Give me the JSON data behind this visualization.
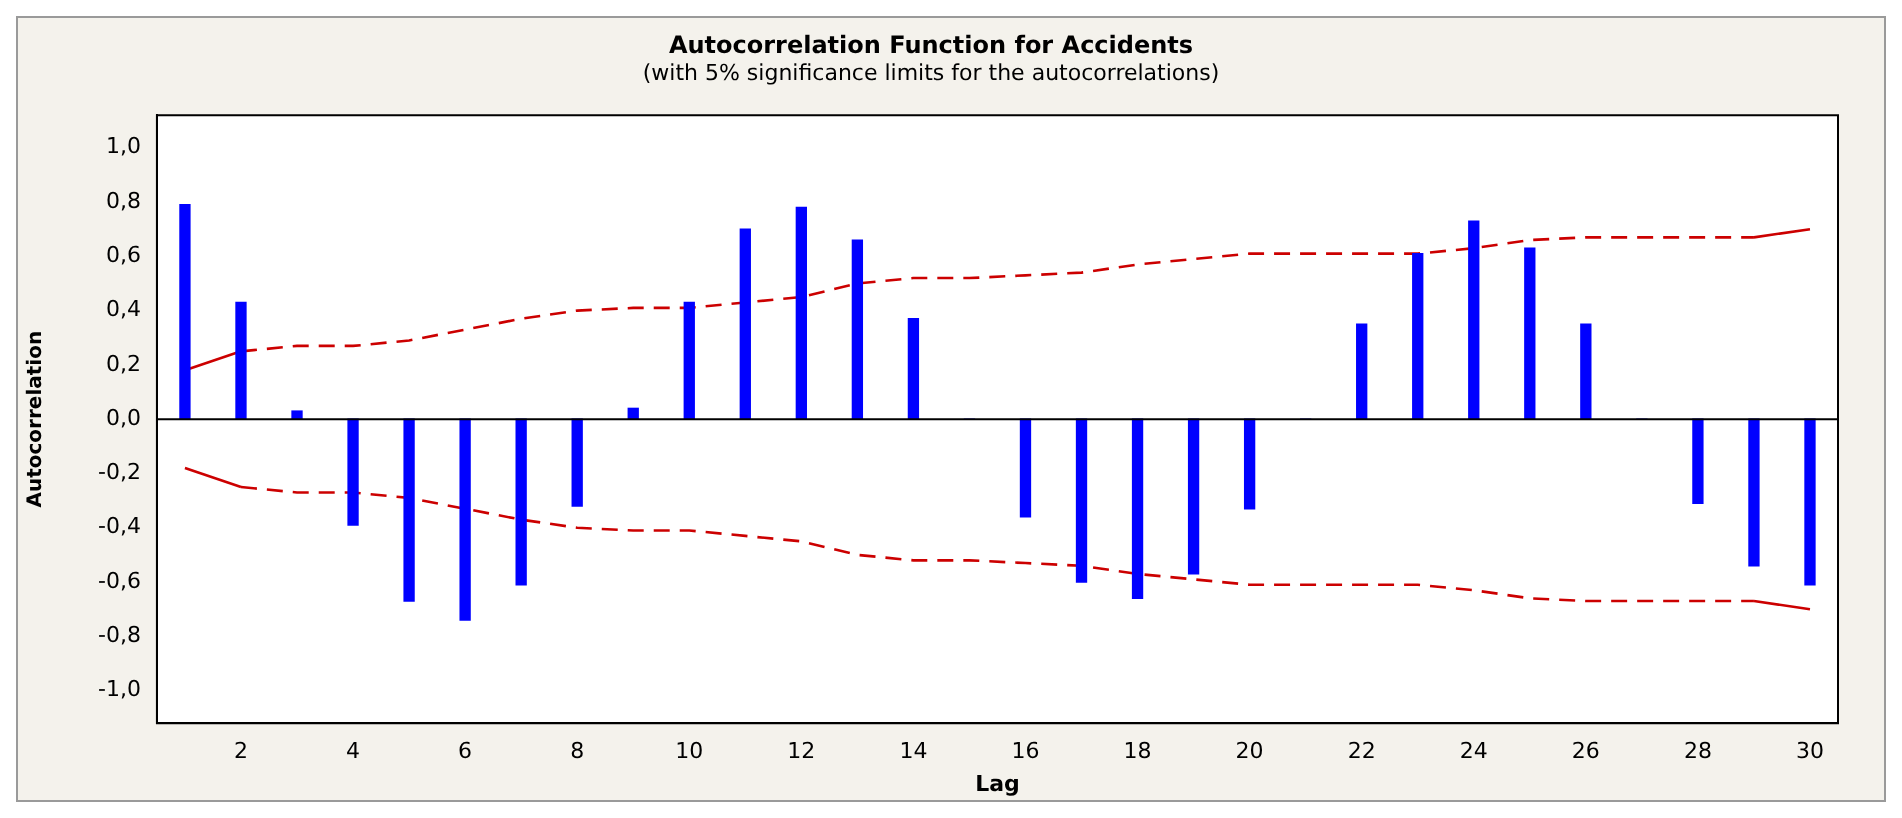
{
  "chart_data": {
    "type": "bar",
    "title": "Autocorrelation Function for Accidents",
    "subtitle": "(with 5% significance limits for the autocorrelations)",
    "xlabel": "Lag",
    "ylabel": "Autocorrelation",
    "x": [
      1,
      2,
      3,
      4,
      5,
      6,
      7,
      8,
      9,
      10,
      11,
      12,
      13,
      14,
      15,
      16,
      17,
      18,
      19,
      20,
      21,
      22,
      23,
      24,
      25,
      26,
      27,
      28,
      29,
      30
    ],
    "series": [
      {
        "color": "#0000ff",
        "values": [
          0.79,
          0.43,
          0.03,
          -0.39,
          -0.67,
          -0.74,
          -0.61,
          -0.32,
          0.04,
          0.43,
          0.7,
          0.78,
          0.66,
          0.37,
          0.0,
          -0.36,
          -0.6,
          -0.66,
          -0.57,
          -0.33,
          0.0,
          0.35,
          0.61,
          0.73,
          0.63,
          0.35,
          0.0,
          -0.31,
          -0.54,
          -0.61
        ]
      },
      {
        "type": "line",
        "color": "#cc0000",
        "line_style": "dashed",
        "values": [
          0.18,
          0.25,
          0.27,
          0.27,
          0.29,
          0.33,
          0.37,
          0.4,
          0.41,
          0.41,
          0.43,
          0.45,
          0.5,
          0.52,
          0.52,
          0.53,
          0.54,
          0.57,
          0.59,
          0.61,
          0.61,
          0.61,
          0.61,
          0.63,
          0.66,
          0.67,
          0.67,
          0.67,
          0.67,
          0.7
        ]
      },
      {
        "type": "line",
        "color": "#cc0000",
        "line_style": "dashed",
        "values": [
          -0.18,
          -0.25,
          -0.27,
          -0.27,
          -0.29,
          -0.33,
          -0.37,
          -0.4,
          -0.41,
          -0.41,
          -0.43,
          -0.45,
          -0.5,
          -0.52,
          -0.52,
          -0.53,
          -0.54,
          -0.57,
          -0.59,
          -0.61,
          -0.61,
          -0.61,
          -0.61,
          -0.63,
          -0.66,
          -0.67,
          -0.67,
          -0.67,
          -0.67,
          -0.7
        ]
      }
    ],
    "xlim": [
      0.5,
      30.5
    ],
    "xticks": [
      2,
      4,
      6,
      8,
      10,
      12,
      14,
      16,
      18,
      20,
      22,
      24,
      26,
      28,
      30
    ],
    "ylim": [
      -1.12,
      1.12
    ],
    "yticks": [
      {
        "value": -1,
        "label": "-1,0"
      },
      {
        "value": -0.8,
        "label": "-0,8"
      },
      {
        "value": -0.6,
        "label": "-0,6"
      },
      {
        "value": -0.4,
        "label": "-0,4"
      },
      {
        "value": -0.2,
        "label": "-0,2"
      },
      {
        "value": 0,
        "label": "0,0"
      },
      {
        "value": 0.2,
        "label": "0,2"
      },
      {
        "value": 0.4,
        "label": "0,4"
      },
      {
        "value": 0.6,
        "label": "0,6"
      },
      {
        "value": 0.8,
        "label": "0,8"
      },
      {
        "value": 1,
        "label": "1,0"
      }
    ],
    "grid": false,
    "legend": false,
    "marker": "none",
    "ref_lines": [
      {
        "axis": "y",
        "value": 0,
        "color": "#000000"
      }
    ]
  }
}
